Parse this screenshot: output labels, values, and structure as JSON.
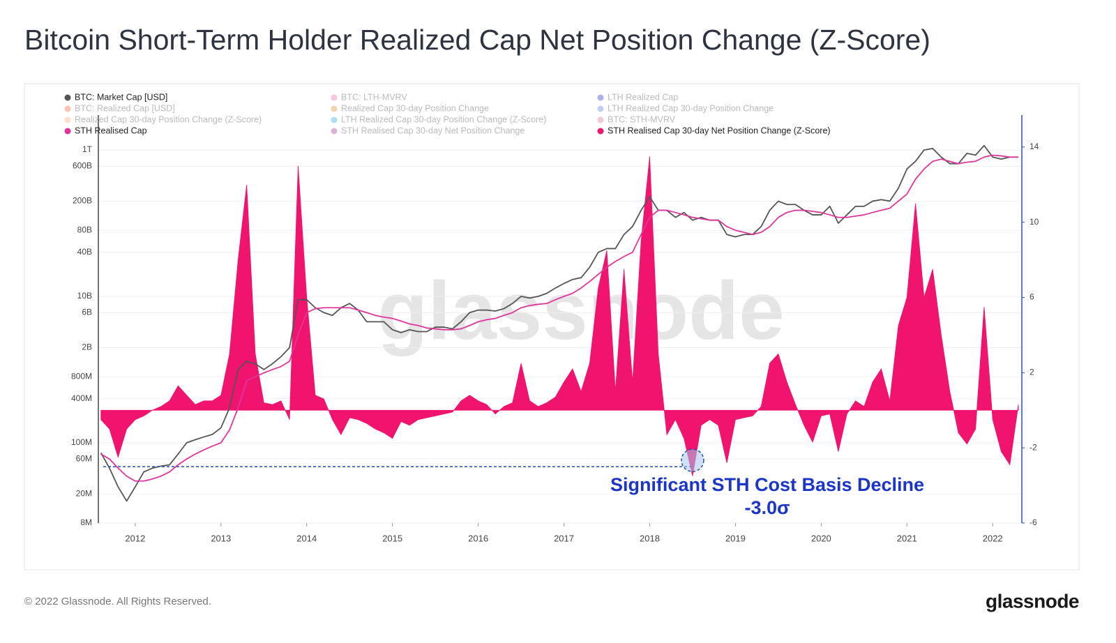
{
  "header": {
    "title": "Bitcoin Short-Term Holder Realized Cap Net Position Change (Z-Score)"
  },
  "footer": {
    "copyright": "© 2022 Glassnode. All Rights Reserved.",
    "logo": "glassnode"
  },
  "chart_data": {
    "type": "line",
    "watermark": "glassnode",
    "annotation": "Significant STH Cost Basis Decline",
    "threshold": {
      "value": -3,
      "label": "-3.0σ"
    },
    "log_scale": true,
    "grid": true,
    "legend": "top-left",
    "x": [
      2011.6,
      2011.7,
      2011.8,
      2011.9,
      2012.0,
      2012.1,
      2012.2,
      2012.3,
      2012.4,
      2012.5,
      2012.6,
      2012.7,
      2012.8,
      2012.9,
      2013.0,
      2013.1,
      2013.2,
      2013.3,
      2013.4,
      2013.5,
      2013.6,
      2013.7,
      2013.8,
      2013.9,
      2014.0,
      2014.1,
      2014.2,
      2014.3,
      2014.4,
      2014.5,
      2014.6,
      2014.7,
      2014.8,
      2014.9,
      2015.0,
      2015.1,
      2015.2,
      2015.3,
      2015.4,
      2015.5,
      2015.6,
      2015.7,
      2015.8,
      2015.9,
      2016.0,
      2016.1,
      2016.2,
      2016.3,
      2016.4,
      2016.5,
      2016.6,
      2016.7,
      2016.8,
      2016.9,
      2017.0,
      2017.1,
      2017.2,
      2017.3,
      2017.4,
      2017.5,
      2017.6,
      2017.7,
      2017.8,
      2017.9,
      2018.0,
      2018.1,
      2018.2,
      2018.3,
      2018.4,
      2018.5,
      2018.6,
      2018.7,
      2018.8,
      2018.9,
      2019.0,
      2019.1,
      2019.2,
      2019.3,
      2019.4,
      2019.5,
      2019.6,
      2019.7,
      2019.8,
      2019.9,
      2020.0,
      2020.1,
      2020.2,
      2020.3,
      2020.4,
      2020.5,
      2020.6,
      2020.7,
      2020.8,
      2020.9,
      2021.0,
      2021.1,
      2021.2,
      2021.3,
      2021.4,
      2021.5,
      2021.6,
      2021.7,
      2021.8,
      2021.9,
      2022.0,
      2022.1,
      2022.2,
      2022.3
    ],
    "xlim": [
      2011.57,
      2022.34
    ],
    "xticks": [
      2012,
      2013,
      2014,
      2015,
      2016,
      2017,
      2018,
      2019,
      2020,
      2021,
      2022
    ],
    "ylim": [
      8000000.0,
      3000000000000.0
    ],
    "yticks": [
      {
        "value": 8000000.0,
        "label": "8M"
      },
      {
        "value": 20000000.0,
        "label": "20M"
      },
      {
        "value": 60000000.0,
        "label": "60M"
      },
      {
        "value": 100000000.0,
        "label": "100M"
      },
      {
        "value": 400000000.0,
        "label": "400M"
      },
      {
        "value": 800000000.0,
        "label": "800M"
      },
      {
        "value": 2000000000.0,
        "label": "2B"
      },
      {
        "value": 6000000000.0,
        "label": "6B"
      },
      {
        "value": 10000000000.0,
        "label": "10B"
      },
      {
        "value": 40000000000.0,
        "label": "40B"
      },
      {
        "value": 80000000000.0,
        "label": "80B"
      },
      {
        "value": 200000000000.0,
        "label": "200B"
      },
      {
        "value": 600000000000.0,
        "label": "600B"
      },
      {
        "value": 1000000000000.0,
        "label": "1T"
      }
    ],
    "y2lim": [
      -6,
      15.7
    ],
    "y2ticks": [
      -6,
      -2,
      2,
      6,
      10,
      14
    ],
    "series": [
      {
        "name": "BTC: Market Cap [USD]",
        "color": "#555555",
        "visible": true,
        "values": [
          73000000.0,
          45000000.0,
          25000000.0,
          16000000.0,
          25000000.0,
          40000000.0,
          45000000.0,
          48000000.0,
          50000000.0,
          70000000.0,
          100000000.0,
          110000000.0,
          120000000.0,
          130000000.0,
          160000000.0,
          300000000.0,
          1000000000.0,
          1300000000.0,
          1200000000.0,
          1000000000.0,
          1200000000.0,
          1500000000.0,
          2000000000.0,
          9000000000.0,
          9000000000.0,
          7000000000.0,
          6000000000.0,
          5500000000.0,
          7000000000.0,
          8000000000.0,
          6500000000.0,
          4500000000.0,
          4500000000.0,
          4500000000.0,
          3500000000.0,
          3200000000.0,
          3500000000.0,
          3300000000.0,
          3300000000.0,
          3800000000.0,
          3800000000.0,
          3600000000.0,
          4500000000.0,
          6000000000.0,
          6500000000.0,
          6500000000.0,
          6300000000.0,
          6800000000.0,
          8000000000.0,
          10000000000.0,
          9500000000.0,
          10000000000.0,
          11000000000.0,
          13000000000.0,
          15000000000.0,
          17000000000.0,
          18000000000.0,
          25000000000.0,
          40000000000.0,
          45000000000.0,
          45000000000.0,
          70000000000.0,
          90000000000.0,
          150000000000.0,
          230000000000.0,
          150000000000.0,
          150000000000.0,
          120000000000.0,
          140000000000.0,
          110000000000.0,
          120000000000.0,
          110000000000.0,
          110000000000.0,
          70000000000.0,
          65000000000.0,
          70000000000.0,
          70000000000.0,
          90000000000.0,
          150000000000.0,
          200000000000.0,
          180000000000.0,
          180000000000.0,
          150000000000.0,
          130000000000.0,
          130000000000.0,
          170000000000.0,
          100000000000.0,
          130000000000.0,
          170000000000.0,
          170000000000.0,
          200000000000.0,
          210000000000.0,
          200000000000.0,
          300000000000.0,
          550000000000.0,
          700000000000.0,
          1000000000000.0,
          1050000000000.0,
          800000000000.0,
          650000000000.0,
          650000000000.0,
          900000000000.0,
          850000000000.0,
          1150000000000.0,
          800000000000.0,
          750000000000.0,
          800000000000.0,
          800000000000.0
        ]
      },
      {
        "name": "BTC: LTH-MVRV",
        "color": "#e05fa8",
        "visible": false
      },
      {
        "name": "LTH Realized Cap",
        "color": "#1020d0",
        "visible": false
      },
      {
        "name": "BTC: Realized Cap [USD]",
        "color": "#f05a22",
        "visible": false
      },
      {
        "name": "Realized Cap 30-day Position Change",
        "color": "#e6821e",
        "visible": false
      },
      {
        "name": "LTH Realized Cap 30-day Position Change",
        "color": "#4a78d8",
        "visible": false
      },
      {
        "name": "Realized Cap 30-day Position Change (Z-Score)",
        "color": "#f5a57a",
        "visible": false
      },
      {
        "name": "LTH Realized Cap 30-day Position Change (Z-Score)",
        "color": "#1ea0e6",
        "visible": false
      },
      {
        "name": "BTC: STH-MVRV",
        "color": "#d0609a",
        "visible": false
      },
      {
        "name": "STH Realised Cap",
        "color": "#e0359a",
        "visible": true,
        "values": [
          70000000.0,
          60000000.0,
          45000000.0,
          35000000.0,
          30000000.0,
          30000000.0,
          32000000.0,
          35000000.0,
          40000000.0,
          50000000.0,
          60000000.0,
          70000000.0,
          80000000.0,
          90000000.0,
          100000000.0,
          150000000.0,
          300000000.0,
          700000000.0,
          800000000.0,
          900000000.0,
          1000000000.0,
          1100000000.0,
          1300000000.0,
          3000000000.0,
          6000000000.0,
          6800000000.0,
          7000000000.0,
          7000000000.0,
          7000000000.0,
          7000000000.0,
          6500000000.0,
          6000000000.0,
          5500000000.0,
          5200000000.0,
          5000000000.0,
          4600000000.0,
          4200000000.0,
          4000000000.0,
          3700000000.0,
          3600000000.0,
          3500000000.0,
          3500000000.0,
          3600000000.0,
          4000000000.0,
          4500000000.0,
          4800000000.0,
          5000000000.0,
          5500000000.0,
          6000000000.0,
          7000000000.0,
          7500000000.0,
          7800000000.0,
          8000000000.0,
          9000000000.0,
          10000000000.0,
          11000000000.0,
          13000000000.0,
          16000000000.0,
          20000000000.0,
          25000000000.0,
          30000000000.0,
          35000000000.0,
          40000000000.0,
          70000000000.0,
          120000000000.0,
          150000000000.0,
          150000000000.0,
          140000000000.0,
          130000000000.0,
          120000000000.0,
          115000000000.0,
          110000000000.0,
          110000000000.0,
          90000000000.0,
          80000000000.0,
          75000000000.0,
          70000000000.0,
          75000000000.0,
          90000000000.0,
          120000000000.0,
          140000000000.0,
          150000000000.0,
          150000000000.0,
          145000000000.0,
          140000000000.0,
          130000000000.0,
          120000000000.0,
          120000000000.0,
          125000000000.0,
          130000000000.0,
          140000000000.0,
          150000000000.0,
          160000000000.0,
          200000000000.0,
          250000000000.0,
          400000000000.0,
          550000000000.0,
          700000000000.0,
          750000000000.0,
          700000000000.0,
          650000000000.0,
          680000000000.0,
          700000000000.0,
          800000000000.0,
          850000000000.0,
          830000000000.0,
          800000000000.0,
          800000000000.0
        ]
      },
      {
        "name": "STH Realised Cap 30-day Net Position Change",
        "color": "#a0228c",
        "visible": false
      },
      {
        "name": "STH Realised Cap 30-day Net Position Change (Z-Score)",
        "color": "#f0146e",
        "visible": true,
        "axis": "y2",
        "fill": true,
        "values": [
          -0.5,
          -1,
          -2.5,
          -1,
          -0.5,
          -0.3,
          0,
          0.2,
          0.5,
          1.3,
          0.8,
          0.3,
          0.5,
          0.5,
          0.8,
          3,
          8,
          12,
          3,
          0.4,
          0.3,
          0.5,
          -0.5,
          13,
          6,
          0.8,
          0.6,
          -0.5,
          -1.3,
          -0.4,
          -0.5,
          -0.7,
          -1,
          -1.2,
          -1.5,
          -0.6,
          -0.8,
          -0.5,
          -0.4,
          -0.3,
          -0.2,
          -0.1,
          0.5,
          0.8,
          0.5,
          0.3,
          -0.2,
          0.2,
          0.4,
          2.5,
          0.5,
          0.2,
          0.4,
          0.7,
          1.5,
          2.2,
          1,
          2.5,
          6.5,
          8.5,
          1,
          7.5,
          1.5,
          9,
          13.5,
          3,
          -1.3,
          -0.5,
          -1.5,
          -3.5,
          -0.8,
          -0.5,
          -0.8,
          -2.8,
          -0.5,
          -0.4,
          -0.3,
          0.2,
          2.5,
          3,
          1.5,
          0.3,
          -0.8,
          -1.7,
          -0.3,
          -0.2,
          -2.2,
          -0.2,
          0.5,
          0.2,
          1.5,
          2.2,
          0.5,
          4.5,
          6,
          11,
          6,
          7.5,
          4,
          1,
          -1.2,
          -1.8,
          -1,
          5.5,
          -0.5,
          -2.2,
          -2.9,
          0.3
        ]
      }
    ]
  }
}
